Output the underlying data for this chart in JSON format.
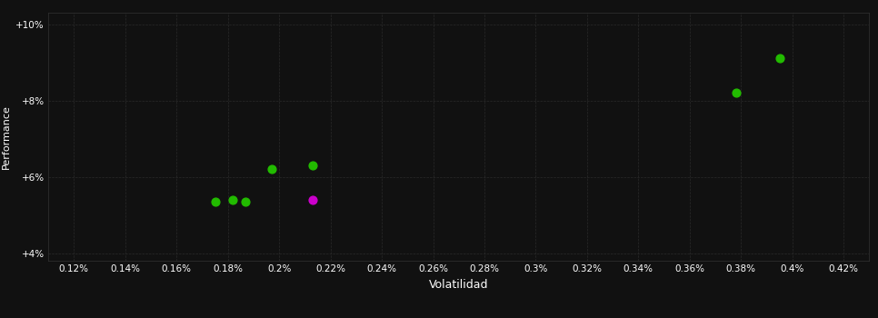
{
  "background_color": "#111111",
  "plot_bg_color": "#111111",
  "grid_color": "#2a2a2a",
  "xlabel": "Volatilidad",
  "ylabel": "Performance",
  "xlim": [
    0.11,
    0.43
  ],
  "ylim": [
    0.038,
    0.103
  ],
  "xticks": [
    0.12,
    0.14,
    0.16,
    0.18,
    0.2,
    0.22,
    0.24,
    0.26,
    0.28,
    0.3,
    0.32,
    0.34,
    0.36,
    0.38,
    0.4,
    0.42
  ],
  "xtick_labels": [
    "0.12%",
    "0.14%",
    "0.16%",
    "0.18%",
    "0.2%",
    "0.22%",
    "0.24%",
    "0.26%",
    "0.28%",
    "0.3%",
    "0.32%",
    "0.34%",
    "0.36%",
    "0.38%",
    "0.4%",
    "0.42%"
  ],
  "yticks": [
    0.04,
    0.06,
    0.08,
    0.1
  ],
  "ytick_labels": [
    "+4%",
    "+6%",
    "+8%",
    "+10%"
  ],
  "points_green": [
    [
      0.175,
      0.0535
    ],
    [
      0.182,
      0.054
    ],
    [
      0.187,
      0.0535
    ],
    [
      0.197,
      0.062
    ],
    [
      0.213,
      0.063
    ],
    [
      0.378,
      0.082
    ],
    [
      0.395,
      0.091
    ]
  ],
  "points_magenta": [
    [
      0.213,
      0.054
    ]
  ],
  "green_color": "#22bb00",
  "magenta_color": "#cc00cc",
  "marker_size": 40
}
